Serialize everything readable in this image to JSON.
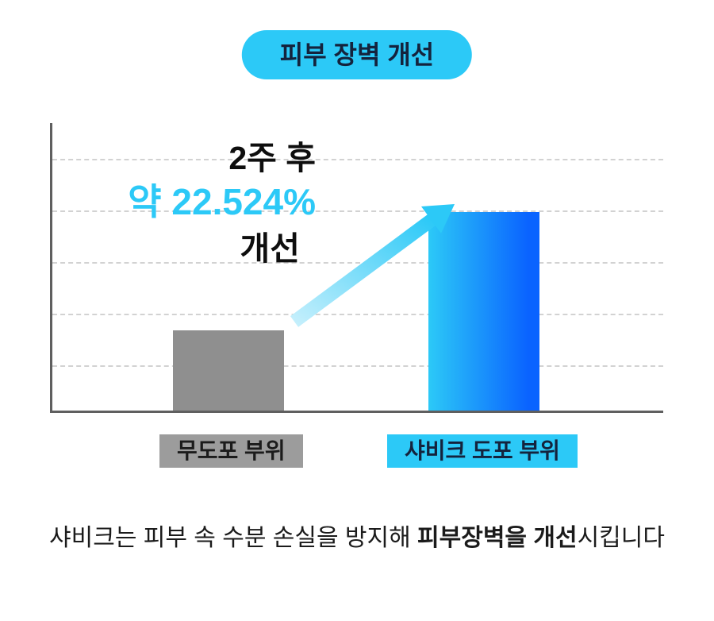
{
  "badge": {
    "label": "피부 장벽 개선"
  },
  "chart_data": {
    "type": "bar",
    "title": "피부 장벽 개선",
    "categories": [
      "무도포 부위",
      "샤비크 도포 부위"
    ],
    "values": [
      28,
      69
    ],
    "xlabel": "",
    "ylabel": "",
    "ylim": [
      0,
      100
    ],
    "grid": "horizontal-dashed",
    "legend": "none",
    "annotation": {
      "line1": "2주 후",
      "highlight": "약 22.524%",
      "line3": "개선"
    },
    "bar_colors": {
      "untreated": "#8f8f8f",
      "treated_gradient_start": "#2CC9F7",
      "treated_gradient_end": "#0A63FF"
    }
  },
  "caption": {
    "prefix": "샤비크는 피부 속 수분 손실을 방지해 ",
    "bold": "피부장벽을 개선",
    "suffix": "시킵니다"
  },
  "colors": {
    "accent_cyan": "#2CC9F7",
    "accent_blue": "#0A63FF",
    "bar_gray": "#8f8f8f",
    "label_gray": "#9c9c9c",
    "text_dark": "#0e0e0e",
    "navy": "#14233d"
  }
}
